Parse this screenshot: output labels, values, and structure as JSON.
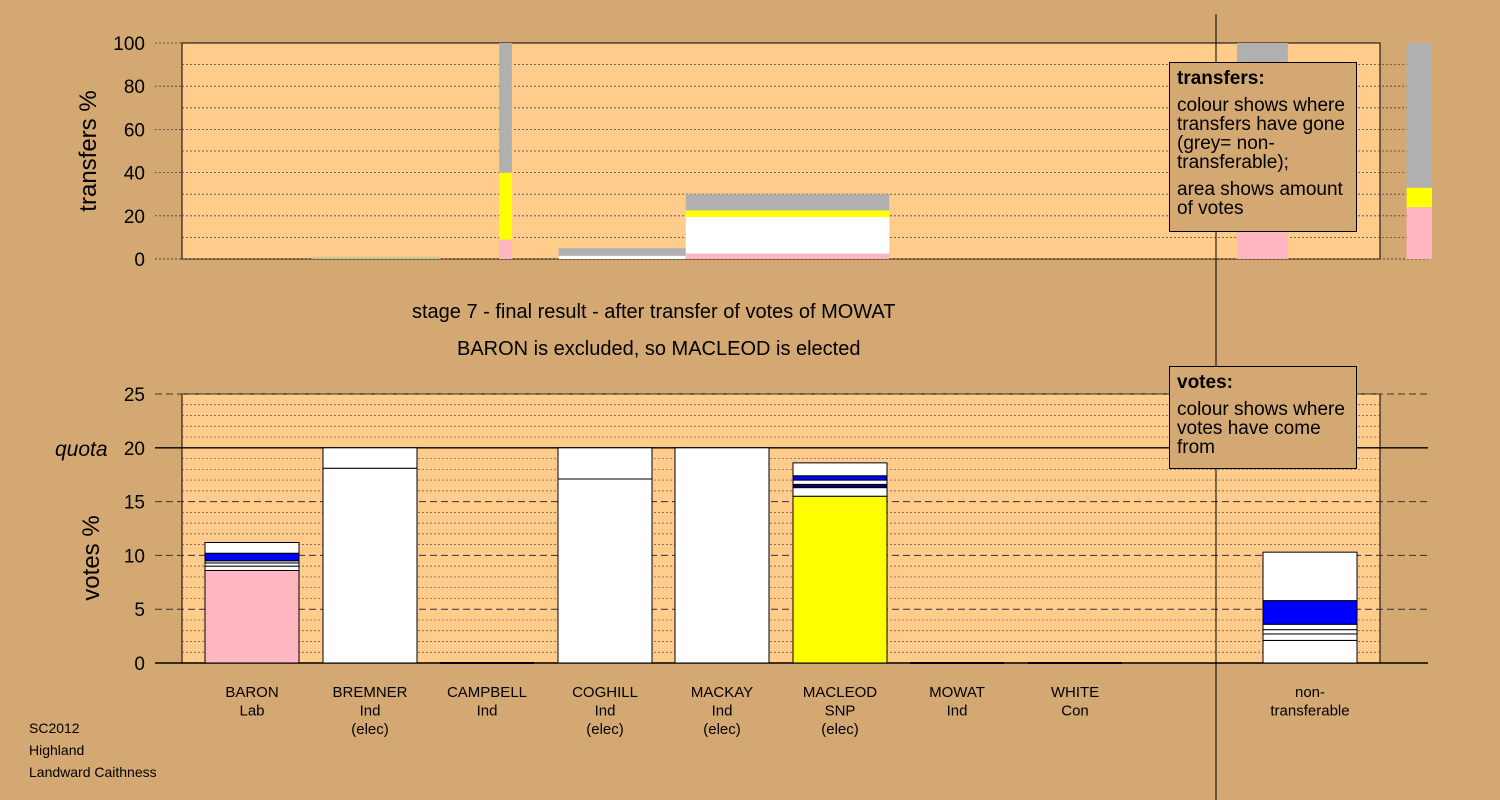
{
  "chart_data": [
    {
      "type": "bar",
      "name": "transfers",
      "ylabel": "transfers %",
      "ylim": [
        0,
        100
      ],
      "yticks": [
        0,
        20,
        40,
        60,
        80,
        100
      ],
      "columns": [
        {
          "key": "BARON",
          "x0": 0.18,
          "x1": 0.33,
          "segments": [
            {
              "value": 1.0,
              "color": "#c8c88c"
            }
          ]
        },
        {
          "key": "CAMPBELL",
          "x0": 0.4,
          "x1": 0.415,
          "segments": [
            {
              "value": 9,
              "color": "#ffb6c1"
            },
            {
              "value": 31,
              "color": "#ffff00"
            },
            {
              "value": 60,
              "color": "#b0b0b0"
            }
          ]
        },
        {
          "key": "COGHILL",
          "x0": 0.47,
          "x1": 0.62,
          "segments": [
            {
              "value": 1.5,
              "color": "#ffffff"
            },
            {
              "value": 3.5,
              "color": "#b0b0b0"
            }
          ]
        },
        {
          "key": "MACKAY",
          "x0": 0.62,
          "x1": 0.86,
          "segments": [
            {
              "value": 2.5,
              "color": "#ffb6c1"
            },
            {
              "value": 17,
              "color": "#ffffff"
            },
            {
              "value": 3,
              "color": "#ffff00"
            },
            {
              "value": 7.5,
              "color": "#b0b0b0"
            }
          ]
        },
        {
          "key": "MACLEOD",
          "x0": 1.27,
          "x1": 1.33,
          "segments": [
            {
              "value": 15,
              "color": "#ffb6c1"
            },
            {
              "value": 19,
              "color": "#ffff00"
            },
            {
              "value": 66,
              "color": "#b0b0b0"
            }
          ]
        },
        {
          "key": "MOWAT",
          "x0": 1.47,
          "x1": 1.5,
          "segments": [
            {
              "value": 24,
              "color": "#ffb6c1"
            },
            {
              "value": 9,
              "color": "#ffff00"
            },
            {
              "value": 67,
              "color": "#b0b0b0"
            }
          ]
        }
      ]
    },
    {
      "type": "bar",
      "name": "votes",
      "ylabel": "votes %",
      "ylim": [
        0,
        25
      ],
      "yticks": [
        0,
        5,
        10,
        15,
        20,
        25
      ],
      "quota": 20,
      "quota_label": "quota",
      "categories": [
        "BARON",
        "BREMNER",
        "CAMPBELL",
        "COGHILL",
        "MACKAY",
        "MACLEOD",
        "MOWAT",
        "WHITE",
        "non-transferable"
      ],
      "labels": [
        [
          "BARON",
          "Lab"
        ],
        [
          "BREMNER",
          "Ind",
          "(elec)"
        ],
        [
          "CAMPBELL",
          "Ind"
        ],
        [
          "COGHILL",
          "Ind",
          "(elec)"
        ],
        [
          "MACKAY",
          "Ind",
          "(elec)"
        ],
        [
          "MACLEOD",
          "SNP",
          "(elec)"
        ],
        [
          "MOWAT",
          "Ind"
        ],
        [
          "WHITE",
          "Con"
        ],
        [
          "non-",
          "transferable"
        ]
      ],
      "bars": [
        {
          "segments": [
            {
              "value": 8.6,
              "color": "#ffb6c1"
            },
            {
              "value": 0.4,
              "color": "#ffffff"
            },
            {
              "value": 0.3,
              "color": "#ffffff"
            },
            {
              "value": 0.2,
              "color": "#ffffff"
            },
            {
              "value": 0.7,
              "color": "#0000ff"
            },
            {
              "value": 1.0,
              "color": "#ffffff"
            }
          ]
        },
        {
          "segments": [
            {
              "value": 18.1,
              "color": "#ffffff"
            },
            {
              "value": 1.9,
              "color": "#ffffff"
            }
          ]
        },
        {
          "segments": []
        },
        {
          "segments": [
            {
              "value": 17.1,
              "color": "#ffffff"
            },
            {
              "value": 2.9,
              "color": "#ffffff"
            }
          ]
        },
        {
          "segments": [
            {
              "value": 20.0,
              "color": "#ffffff"
            }
          ]
        },
        {
          "segments": [
            {
              "value": 15.5,
              "color": "#ffff00"
            },
            {
              "value": 0.8,
              "color": "#ffffff"
            },
            {
              "value": 0.3,
              "color": "#000080"
            },
            {
              "value": 0.4,
              "color": "#ffffff"
            },
            {
              "value": 0.4,
              "color": "#0000ff"
            },
            {
              "value": 1.2,
              "color": "#ffffff"
            }
          ]
        },
        {
          "segments": []
        },
        {
          "segments": []
        },
        {
          "segments": [
            {
              "value": 2.1,
              "color": "#ffffff"
            },
            {
              "value": 0.6,
              "color": "#ffffff"
            },
            {
              "value": 0.4,
              "color": "#ffffff"
            },
            {
              "value": 0.5,
              "color": "#ffffff"
            },
            {
              "value": 2.2,
              "color": "#0000ff"
            },
            {
              "value": 4.5,
              "color": "#ffffff"
            }
          ]
        }
      ]
    }
  ],
  "stage_title": "stage 7 - final result - after transfer of votes of MOWAT",
  "stage_subtitle": "BARON is excluded, so MACLEOD is elected",
  "transfers_legend": {
    "heading": "transfers:",
    "line1": "colour shows where transfers have gone (grey= non-transferable);",
    "line2": "area shows amount of votes"
  },
  "votes_legend": {
    "heading": "votes:",
    "line1": "colour shows where votes have come from"
  },
  "meta": {
    "line1": "SC2012",
    "line2": "Highland",
    "line3": "Landward Caithness"
  },
  "colors": {
    "background": "#d4a872",
    "plot": "#ffcc8c",
    "grey": "#b0b0b0",
    "pink": "#ffb6c1",
    "yellow": "#ffff00",
    "blue": "#0000ff"
  }
}
